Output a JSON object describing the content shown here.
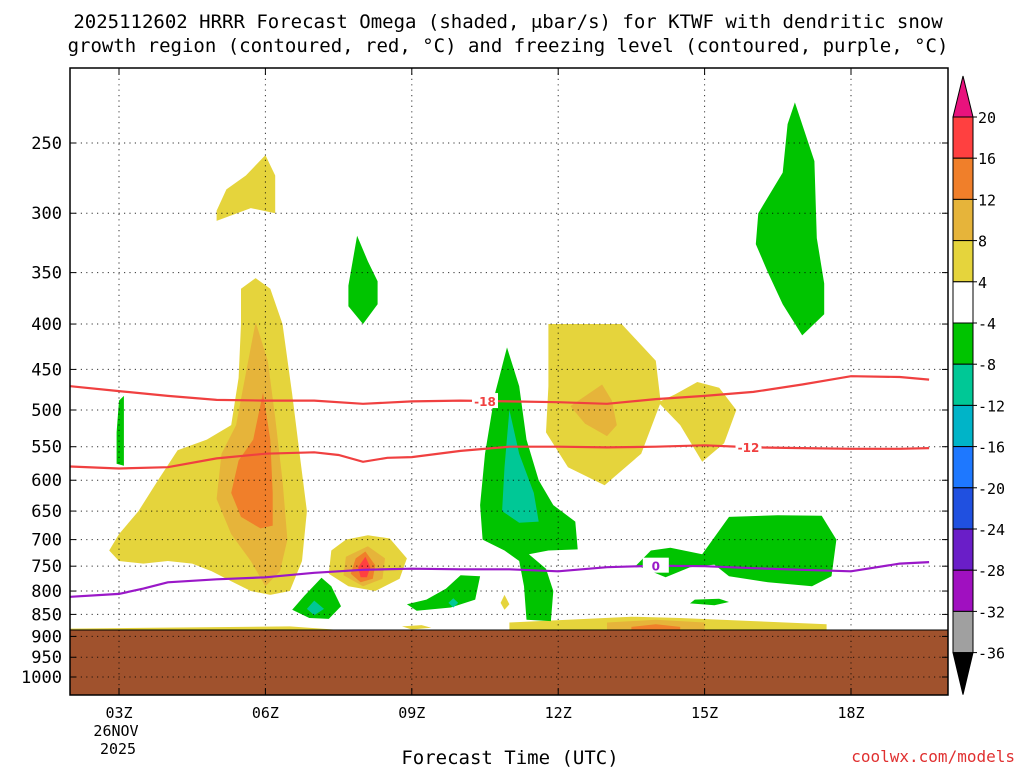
{
  "chart_data": {
    "type": "contour",
    "title_line1": "2025112602 HRRR Forecast Omega (shaded, μbar/s) for KTWF with dendritic snow",
    "title_line2": "growth region (contoured, red, °C) and freezing level (contoured, purple, °C)",
    "xlabel": "Forecast Time (UTC)",
    "ylabel": "",
    "x_ticks": [
      {
        "hour": 3,
        "label": "03Z"
      },
      {
        "hour": 6,
        "label": "06Z"
      },
      {
        "hour": 9,
        "label": "09Z"
      },
      {
        "hour": 12,
        "label": "12Z"
      },
      {
        "hour": 15,
        "label": "15Z"
      },
      {
        "hour": 18,
        "label": "18Z"
      }
    ],
    "date_label_day": "26NOV",
    "date_label_year": "2025",
    "xlim": [
      2.0,
      19.6
    ],
    "ylim_hpa": [
      200,
      1040
    ],
    "y_ticks": [
      250,
      300,
      350,
      400,
      450,
      500,
      550,
      600,
      650,
      700,
      750,
      800,
      850,
      900,
      950,
      1000
    ],
    "terrain_top_hpa": 885,
    "colorbar": {
      "levels": [
        "20",
        "16",
        "12",
        "8",
        "4",
        "-4",
        "-8",
        "-12",
        "-16",
        "-20",
        "-24",
        "-28",
        "-32",
        "-36"
      ],
      "colors": [
        "#e8127d",
        "#ff4040",
        "#f07f2a",
        "#e6b43a",
        "#e5d43c",
        "#ffffff",
        "#00c400",
        "#00c896",
        "#00b4c8",
        "#1e78ff",
        "#2050e0",
        "#6a1ec8",
        "#a010c0",
        "#a0a0a0",
        "#000000"
      ],
      "top_arrow_color": "#e8127d",
      "bottom_arrow_color": "#000000"
    },
    "contour_labels": {
      "dgz_upper": "-18",
      "dgz_lower": "-12",
      "freezing": "0"
    },
    "dgz_upper_line": [
      [
        2.0,
        470
      ],
      [
        3,
        476
      ],
      [
        4,
        482
      ],
      [
        5,
        487
      ],
      [
        6,
        488
      ],
      [
        7,
        488
      ],
      [
        8,
        492
      ],
      [
        9,
        489
      ],
      [
        10,
        488
      ],
      [
        11,
        489
      ],
      [
        12,
        490
      ],
      [
        13,
        492
      ],
      [
        14,
        486
      ],
      [
        15,
        482
      ],
      [
        16,
        477
      ],
      [
        17,
        468
      ],
      [
        18,
        458
      ],
      [
        19,
        459
      ],
      [
        19.6,
        462
      ]
    ],
    "dgz_lower_line": [
      [
        2.0,
        579
      ],
      [
        3,
        582
      ],
      [
        4,
        580
      ],
      [
        5,
        567
      ],
      [
        6,
        560
      ],
      [
        7,
        558
      ],
      [
        7.5,
        562
      ],
      [
        8,
        572
      ],
      [
        8.5,
        566
      ],
      [
        9,
        565
      ],
      [
        10,
        556
      ],
      [
        11,
        550
      ],
      [
        12,
        550
      ],
      [
        13,
        551
      ],
      [
        14,
        550
      ],
      [
        15,
        548
      ],
      [
        16,
        551
      ],
      [
        17,
        552
      ],
      [
        18,
        553
      ],
      [
        19,
        553
      ],
      [
        19.6,
        552
      ]
    ],
    "freezing_line": [
      [
        2.0,
        812
      ],
      [
        3,
        806
      ],
      [
        3.5,
        795
      ],
      [
        4,
        782
      ],
      [
        5,
        776
      ],
      [
        6,
        772
      ],
      [
        7,
        763
      ],
      [
        8,
        757
      ],
      [
        9,
        755
      ],
      [
        10,
        756
      ],
      [
        11,
        756
      ],
      [
        12,
        760
      ],
      [
        13,
        752
      ],
      [
        14,
        749
      ],
      [
        15,
        750
      ],
      [
        16,
        754
      ],
      [
        17,
        757
      ],
      [
        18,
        760
      ],
      [
        19,
        745
      ],
      [
        19.6,
        742
      ]
    ],
    "filled_regions": [
      {
        "color": "#e5d43c",
        "points": [
          [
            5.0,
            298
          ],
          [
            5.2,
            282
          ],
          [
            5.6,
            272
          ],
          [
            6.0,
            258
          ],
          [
            6.2,
            272
          ],
          [
            6.2,
            300
          ],
          [
            5.7,
            296
          ],
          [
            5.0,
            306
          ]
        ]
      },
      {
        "color": "#e5d43c",
        "points": [
          [
            5.5,
            365
          ],
          [
            5.8,
            355
          ],
          [
            6.1,
            365
          ],
          [
            6.35,
            400
          ],
          [
            6.55,
            480
          ],
          [
            6.7,
            560
          ],
          [
            6.85,
            650
          ],
          [
            6.75,
            740
          ],
          [
            6.5,
            800
          ],
          [
            6.1,
            808
          ],
          [
            5.7,
            800
          ],
          [
            5.3,
            780
          ],
          [
            4.9,
            760
          ],
          [
            4.5,
            745
          ],
          [
            4.0,
            740
          ],
          [
            3.5,
            745
          ],
          [
            3.0,
            740
          ],
          [
            2.8,
            720
          ],
          [
            3.0,
            690
          ],
          [
            3.4,
            650
          ],
          [
            3.8,
            600
          ],
          [
            4.2,
            555
          ],
          [
            4.8,
            540
          ],
          [
            5.3,
            520
          ],
          [
            5.45,
            460
          ],
          [
            5.5,
            400
          ]
        ]
      },
      {
        "color": "#e6b43a",
        "points": [
          [
            5.8,
            398
          ],
          [
            6.05,
            440
          ],
          [
            6.2,
            510
          ],
          [
            6.35,
            600
          ],
          [
            6.45,
            700
          ],
          [
            6.3,
            760
          ],
          [
            6.0,
            790
          ],
          [
            5.7,
            740
          ],
          [
            5.3,
            690
          ],
          [
            5.0,
            630
          ],
          [
            5.1,
            560
          ],
          [
            5.4,
            520
          ],
          [
            5.55,
            470
          ]
        ]
      },
      {
        "color": "#f07f2a",
        "points": [
          [
            5.95,
            478
          ],
          [
            6.1,
            540
          ],
          [
            6.15,
            620
          ],
          [
            6.15,
            675
          ],
          [
            5.9,
            680
          ],
          [
            5.5,
            660
          ],
          [
            5.3,
            620
          ],
          [
            5.45,
            570
          ],
          [
            5.75,
            540
          ]
        ]
      },
      {
        "color": "#e5d43c",
        "points": [
          [
            8.1,
            692
          ],
          [
            8.55,
            698
          ],
          [
            8.9,
            735
          ],
          [
            8.75,
            775
          ],
          [
            8.25,
            800
          ],
          [
            7.7,
            790
          ],
          [
            7.3,
            765
          ],
          [
            7.35,
            720
          ],
          [
            7.65,
            700
          ]
        ]
      },
      {
        "color": "#e6b43a",
        "points": [
          [
            8.1,
            712
          ],
          [
            8.45,
            735
          ],
          [
            8.4,
            775
          ],
          [
            8.0,
            790
          ],
          [
            7.6,
            768
          ],
          [
            7.65,
            732
          ]
        ]
      },
      {
        "color": "#f07f2a",
        "points": [
          [
            8.05,
            722
          ],
          [
            8.25,
            748
          ],
          [
            8.2,
            775
          ],
          [
            7.95,
            782
          ],
          [
            7.75,
            765
          ],
          [
            7.85,
            735
          ]
        ]
      },
      {
        "color": "#ff4040",
        "points": [
          [
            8.05,
            732
          ],
          [
            8.15,
            752
          ],
          [
            8.08,
            772
          ],
          [
            7.95,
            772
          ],
          [
            7.9,
            752
          ]
        ]
      },
      {
        "color": "#e5d43c",
        "points": [
          [
            11.8,
            400
          ],
          [
            13.3,
            400
          ],
          [
            14.0,
            440
          ],
          [
            14.1,
            490
          ],
          [
            13.7,
            560
          ],
          [
            12.95,
            608
          ],
          [
            12.2,
            580
          ],
          [
            11.75,
            530
          ],
          [
            11.8,
            470
          ]
        ]
      },
      {
        "color": "#e6b43a",
        "points": [
          [
            12.9,
            468
          ],
          [
            13.1,
            488
          ],
          [
            13.2,
            520
          ],
          [
            13.0,
            535
          ],
          [
            12.55,
            518
          ],
          [
            12.25,
            495
          ]
        ]
      },
      {
        "color": "#e5d43c",
        "points": [
          [
            14.85,
            465
          ],
          [
            15.3,
            472
          ],
          [
            15.65,
            500
          ],
          [
            15.4,
            545
          ],
          [
            14.95,
            572
          ],
          [
            14.5,
            520
          ],
          [
            14.05,
            490
          ],
          [
            14.4,
            480
          ]
        ]
      },
      {
        "color": "#e5d43c",
        "points": [
          [
            11.0,
            868
          ],
          [
            13.5,
            855
          ],
          [
            14.5,
            858
          ],
          [
            16.0,
            865
          ],
          [
            17.5,
            872
          ],
          [
            17.5,
            890
          ],
          [
            11.0,
            890
          ]
        ]
      },
      {
        "color": "#e6b43a",
        "points": [
          [
            13.0,
            868
          ],
          [
            14.0,
            862
          ],
          [
            15.0,
            868
          ],
          [
            15.0,
            890
          ],
          [
            13.0,
            890
          ]
        ]
      },
      {
        "color": "#f07f2a",
        "points": [
          [
            13.5,
            878
          ],
          [
            14.0,
            872
          ],
          [
            14.5,
            878
          ],
          [
            14.5,
            890
          ],
          [
            13.5,
            890
          ]
        ]
      },
      {
        "color": "#e5d43c",
        "points": [
          [
            2.0,
            882
          ],
          [
            6.5,
            877
          ],
          [
            7.5,
            885
          ],
          [
            7.5,
            890
          ],
          [
            2.0,
            890
          ]
        ]
      },
      {
        "color": "#e5d43c",
        "points": [
          [
            8.8,
            877
          ],
          [
            9.2,
            874
          ],
          [
            9.4,
            880
          ],
          [
            9.0,
            884
          ]
        ]
      },
      {
        "color": "#e5d43c",
        "points": [
          [
            10.82,
            825
          ],
          [
            10.9,
            808
          ],
          [
            11.0,
            828
          ],
          [
            10.9,
            840
          ]
        ]
      },
      {
        "color": "#00c400",
        "points": [
          [
            3.0,
            488
          ],
          [
            3.1,
            482
          ],
          [
            3.1,
            578
          ],
          [
            2.95,
            575
          ],
          [
            2.95,
            530
          ]
        ]
      },
      {
        "color": "#00c400",
        "points": [
          [
            7.88,
            318
          ],
          [
            8.1,
            340
          ],
          [
            8.3,
            358
          ],
          [
            8.3,
            380
          ],
          [
            8.0,
            400
          ],
          [
            7.7,
            382
          ],
          [
            7.7,
            362
          ]
        ]
      },
      {
        "color": "#00c400",
        "points": [
          [
            7.15,
            773
          ],
          [
            7.35,
            790
          ],
          [
            7.55,
            832
          ],
          [
            7.3,
            860
          ],
          [
            6.9,
            858
          ],
          [
            6.55,
            840
          ],
          [
            6.8,
            810
          ]
        ]
      },
      {
        "color": "#00c896",
        "points": [
          [
            7.0,
            820
          ],
          [
            7.2,
            838
          ],
          [
            7.0,
            852
          ],
          [
            6.85,
            838
          ]
        ]
      },
      {
        "color": "#00c400",
        "points": [
          [
            10.0,
            768
          ],
          [
            10.4,
            770
          ],
          [
            10.3,
            818
          ],
          [
            9.8,
            835
          ],
          [
            9.1,
            842
          ],
          [
            8.9,
            828
          ],
          [
            9.3,
            818
          ],
          [
            9.7,
            795
          ]
        ]
      },
      {
        "color": "#00c896",
        "points": [
          [
            9.85,
            815
          ],
          [
            9.95,
            825
          ],
          [
            9.85,
            835
          ],
          [
            9.75,
            825
          ]
        ]
      },
      {
        "color": "#00c400",
        "points": [
          [
            10.95,
            425
          ],
          [
            11.2,
            470
          ],
          [
            11.35,
            540
          ],
          [
            11.6,
            600
          ],
          [
            11.9,
            640
          ],
          [
            12.35,
            668
          ],
          [
            12.4,
            718
          ],
          [
            11.8,
            720
          ],
          [
            11.4,
            727
          ],
          [
            11.75,
            755
          ],
          [
            11.9,
            800
          ],
          [
            11.85,
            865
          ],
          [
            11.35,
            862
          ],
          [
            11.3,
            790
          ],
          [
            11.2,
            740
          ],
          [
            10.9,
            720
          ],
          [
            10.45,
            700
          ],
          [
            10.4,
            640
          ],
          [
            10.5,
            560
          ],
          [
            10.7,
            480
          ]
        ]
      },
      {
        "color": "#00c896",
        "points": [
          [
            11.0,
            500
          ],
          [
            11.2,
            560
          ],
          [
            11.5,
            620
          ],
          [
            11.6,
            668
          ],
          [
            11.2,
            670
          ],
          [
            10.85,
            650
          ],
          [
            10.9,
            580
          ]
        ]
      },
      {
        "color": "#00c400",
        "points": [
          [
            16.7,
            238
          ],
          [
            16.85,
            225
          ],
          [
            17.25,
            262
          ],
          [
            17.3,
            320
          ],
          [
            17.45,
            360
          ],
          [
            17.45,
            390
          ],
          [
            17.0,
            412
          ],
          [
            16.6,
            380
          ],
          [
            16.3,
            350
          ],
          [
            16.05,
            325
          ],
          [
            16.1,
            300
          ],
          [
            16.6,
            270
          ]
        ]
      },
      {
        "color": "#00c400",
        "points": [
          [
            15.5,
            660
          ],
          [
            16.5,
            657
          ],
          [
            17.4,
            658
          ],
          [
            17.7,
            700
          ],
          [
            17.6,
            770
          ],
          [
            17.2,
            790
          ],
          [
            16.3,
            782
          ],
          [
            15.5,
            770
          ],
          [
            15.2,
            747
          ],
          [
            14.7,
            752
          ],
          [
            14.2,
            772
          ],
          [
            13.6,
            748
          ],
          [
            13.9,
            720
          ],
          [
            14.3,
            715
          ],
          [
            14.95,
            727
          ]
        ]
      },
      {
        "color": "#00c400",
        "points": [
          [
            14.8,
            818
          ],
          [
            15.3,
            816
          ],
          [
            15.5,
            823
          ],
          [
            15.2,
            830
          ],
          [
            14.7,
            826
          ]
        ]
      }
    ]
  },
  "watermark": "coolwx.com/models"
}
